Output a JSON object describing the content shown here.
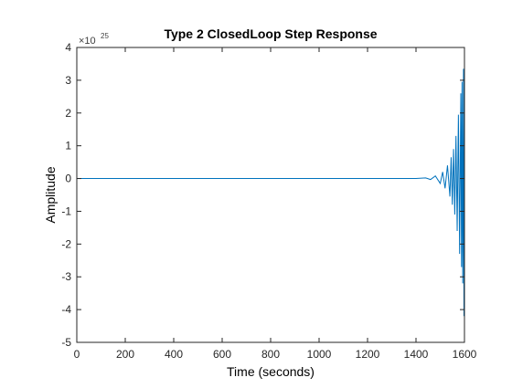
{
  "chart_data": {
    "type": "line",
    "title": "Type 2 ClosedLoop Step Response",
    "xlabel": "Time (seconds)",
    "ylabel": "Amplitude",
    "xlim": [
      0,
      1600
    ],
    "ylim": [
      -5,
      4
    ],
    "x_ticks": [
      0,
      200,
      400,
      600,
      800,
      1000,
      1200,
      1400,
      1600
    ],
    "x_tick_labels": [
      "0",
      "200",
      "400",
      "600",
      "800",
      "1000",
      "1200",
      "1400",
      "1600"
    ],
    "y_ticks": [
      -5,
      -4,
      -3,
      -2,
      -1,
      0,
      1,
      2,
      3,
      4
    ],
    "y_tick_labels": [
      "-5",
      "-4",
      "-3",
      "-2",
      "-1",
      "0",
      "1",
      "2",
      "3",
      "4"
    ],
    "y_multiplier": {
      "base": "×10",
      "exponent": "25"
    },
    "grid": false,
    "series": [
      {
        "color": "#0072bd",
        "x": [
          0,
          1400,
          1440,
          1460,
          1480,
          1500,
          1510,
          1520,
          1530,
          1540,
          1545,
          1550,
          1555,
          1560,
          1565,
          1570,
          1575,
          1580,
          1585,
          1588,
          1590,
          1593,
          1596,
          1598
        ],
        "y": [
          0,
          0,
          0.02,
          -0.03,
          0.08,
          -0.15,
          0.2,
          -0.3,
          0.4,
          -0.55,
          0.65,
          -0.8,
          0.9,
          -1.1,
          1.3,
          -1.6,
          1.95,
          -2.3,
          2.6,
          -2.7,
          2.95,
          -3.2,
          3.35,
          -4.2
        ]
      }
    ]
  }
}
